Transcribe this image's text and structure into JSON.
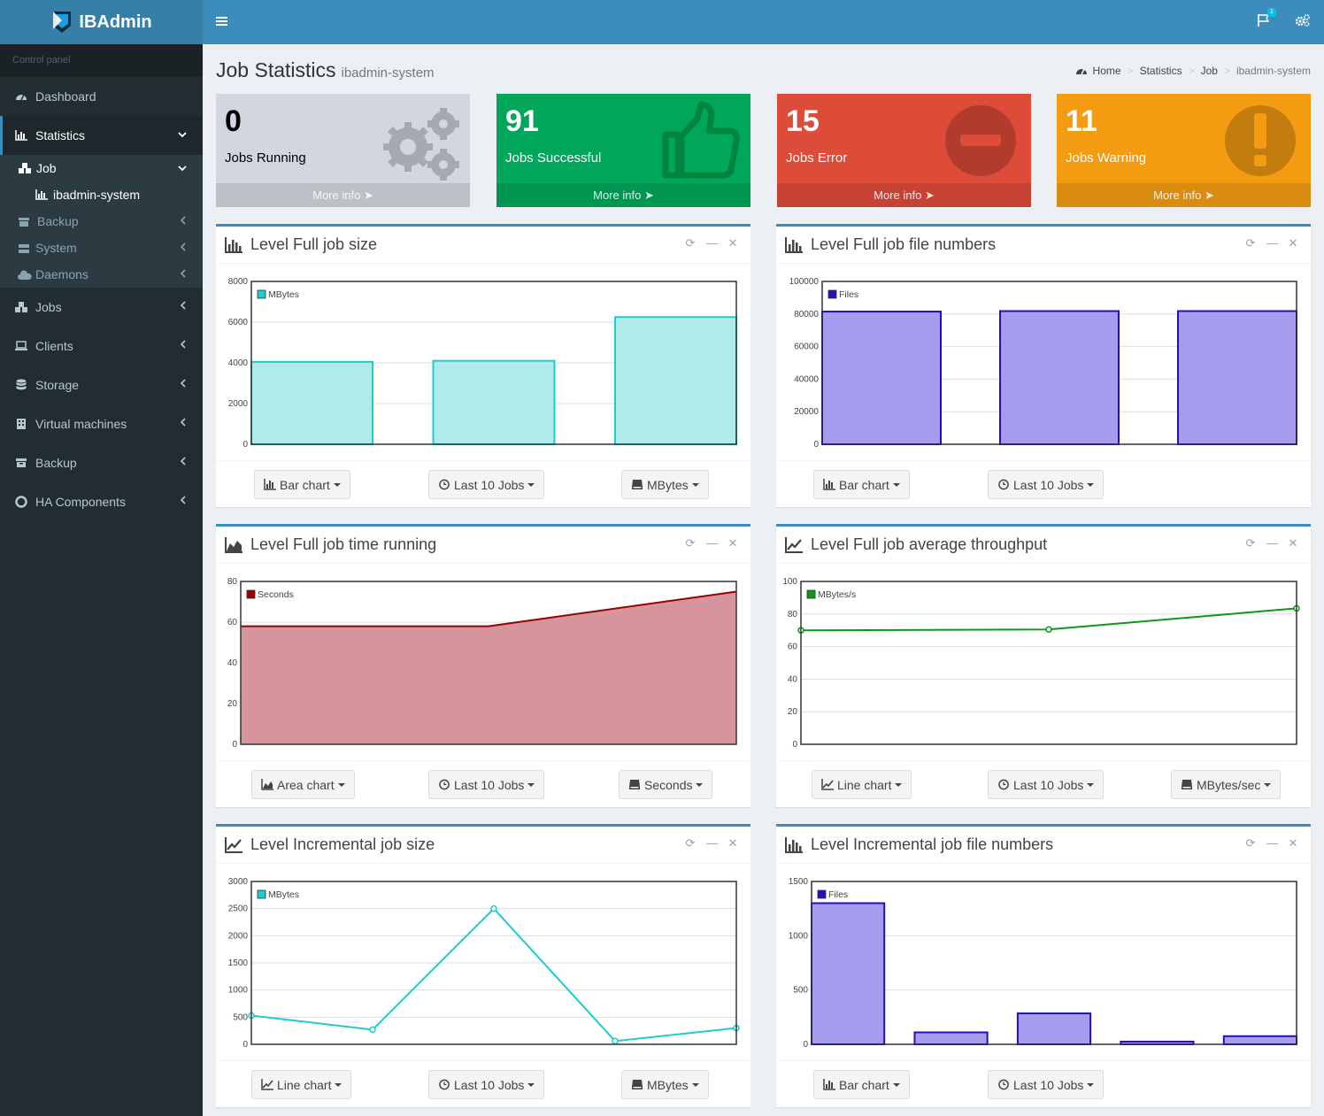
{
  "app": {
    "name": "IBAdmin"
  },
  "header": {
    "notification_count": "1"
  },
  "sidebar": {
    "header": "Control panel",
    "items": [
      {
        "label": "Dashboard",
        "icon": "dashboard-icon"
      },
      {
        "label": "Statistics",
        "icon": "bar-chart-icon"
      },
      {
        "label": "Jobs",
        "icon": "cubes-icon"
      },
      {
        "label": "Clients",
        "icon": "laptop-icon"
      },
      {
        "label": "Storage",
        "icon": "database-icon"
      },
      {
        "label": "Virtual machines",
        "icon": "building-icon"
      },
      {
        "label": "Backup",
        "icon": "archive-icon"
      },
      {
        "label": "HA Components",
        "icon": "life-ring-icon"
      }
    ],
    "submenu": {
      "job": "Job",
      "ibadmin_system": "ibadmin-system",
      "backup": "Backup",
      "system": "System",
      "daemons": "Daemons"
    }
  },
  "page": {
    "title": "Job Statistics",
    "subtitle": "ibadmin-system"
  },
  "breadcrumb": {
    "home": "Home",
    "statistics": "Statistics",
    "job": "Job",
    "current": "ibadmin-system"
  },
  "info_boxes": [
    {
      "value": "0",
      "label": "Jobs Running",
      "more": "More info",
      "color": "#d2d6de",
      "icon": "gears-icon"
    },
    {
      "value": "91",
      "label": "Jobs Successful",
      "more": "More info",
      "color": "#00a65a",
      "icon": "thumbs-up-icon"
    },
    {
      "value": "15",
      "label": "Jobs Error",
      "more": "More info",
      "color": "#dd4b39",
      "icon": "minus-circle-icon"
    },
    {
      "value": "11",
      "label": "Jobs Warning",
      "more": "More info",
      "color": "#f39c12",
      "icon": "exclamation-circle-icon"
    }
  ],
  "panels": [
    {
      "title": "Level Full job size",
      "buttons": [
        "Bar chart",
        "Last 10 Jobs",
        "MBytes"
      ]
    },
    {
      "title": "Level Full job file numbers",
      "buttons": [
        "Bar chart",
        "Last 10 Jobs"
      ]
    },
    {
      "title": "Level Full job time running",
      "buttons": [
        "Area chart",
        "Last 10 Jobs",
        "Seconds"
      ]
    },
    {
      "title": "Level Full job average throughput",
      "buttons": [
        "Line chart",
        "Last 10 Jobs",
        "MBytes/sec"
      ]
    },
    {
      "title": "Level Incremental job size",
      "buttons": [
        "Line chart",
        "Last 10 Jobs",
        "MBytes"
      ]
    },
    {
      "title": "Level Incremental job file numbers",
      "buttons": [
        "Bar chart",
        "Last 10 Jobs"
      ]
    }
  ],
  "chart_data": [
    {
      "type": "bar",
      "series": [
        {
          "name": "MBytes",
          "values": [
            4050,
            4100,
            6250
          ]
        }
      ],
      "ylim": [
        0,
        8000
      ],
      "yticks": [
        0,
        2000,
        4000,
        6000,
        8000
      ],
      "color": "#1fcccc",
      "fill": "#b0ebeb"
    },
    {
      "type": "bar",
      "series": [
        {
          "name": "Files",
          "values": [
            81500,
            81800,
            81800
          ]
        }
      ],
      "ylim": [
        0,
        100000
      ],
      "yticks": [
        0,
        20000,
        40000,
        60000,
        80000,
        100000
      ],
      "color": "#2211bb",
      "fill": "#a59ced"
    },
    {
      "type": "area",
      "series": [
        {
          "name": "Seconds",
          "values": [
            58,
            58,
            75
          ]
        }
      ],
      "ylim": [
        0,
        80
      ],
      "yticks": [
        0,
        20,
        40,
        60,
        80
      ],
      "color": "#990000",
      "fill": "#d6959c"
    },
    {
      "type": "line",
      "series": [
        {
          "name": "MBytes/s",
          "values": [
            70,
            70.5,
            83.5
          ]
        }
      ],
      "ylim": [
        0,
        100
      ],
      "yticks": [
        0,
        20,
        40,
        60,
        80,
        100
      ],
      "color": "#109618"
    },
    {
      "type": "line",
      "series": [
        {
          "name": "MBytes",
          "values": [
            530,
            270,
            2500,
            60,
            300
          ]
        }
      ],
      "ylim": [
        0,
        3000
      ],
      "yticks": [
        0,
        500,
        1000,
        1500,
        2000,
        2500,
        3000
      ],
      "color": "#1fcccc"
    },
    {
      "type": "bar",
      "series": [
        {
          "name": "Files",
          "values": [
            1300,
            110,
            285,
            25,
            75
          ]
        }
      ],
      "ylim": [
        0,
        1500
      ],
      "yticks": [
        0,
        500,
        1000,
        1500
      ],
      "color": "#2211bb",
      "fill": "#a59ced"
    }
  ]
}
